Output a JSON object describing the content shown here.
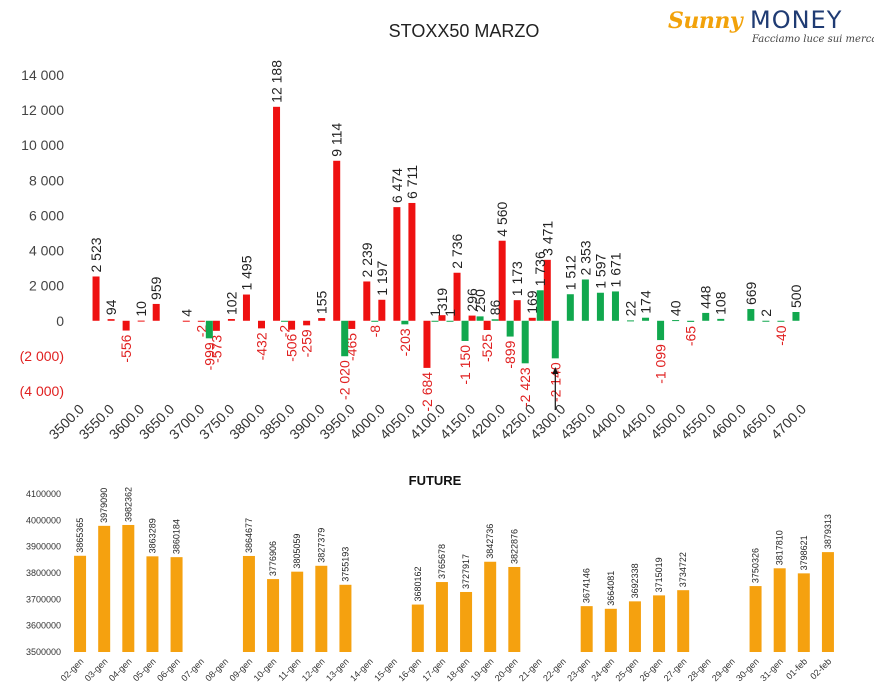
{
  "logo": {
    "brand1": "Sunny",
    "brand2": "MONEY",
    "tagline": "Facciamo luce sui mercati"
  },
  "colors": {
    "call": "#ee1111",
    "put": "#11a84e",
    "future": "#f5a10f",
    "neg_label": "#e02020",
    "axis_text": "#444444"
  },
  "chart_data": [
    {
      "type": "bar",
      "title": "STOXX50 MARZO",
      "ylim": [
        -4000,
        14000
      ],
      "yticks": [
        {
          "v": 14000,
          "label": "14 000"
        },
        {
          "v": 12000,
          "label": "12 000"
        },
        {
          "v": 10000,
          "label": "10 000"
        },
        {
          "v": 8000,
          "label": "8 000"
        },
        {
          "v": 6000,
          "label": "6 000"
        },
        {
          "v": 4000,
          "label": "4 000"
        },
        {
          "v": 2000,
          "label": "2 000"
        },
        {
          "v": 0,
          "label": "0"
        },
        {
          "v": -2000,
          "label": "(2 000)"
        },
        {
          "v": -4000,
          "label": "(4 000)"
        }
      ],
      "xlim": [
        3500,
        4700
      ],
      "xticks": [
        "3500.0",
        "3550.0",
        "3600.0",
        "3650.0",
        "3700.0",
        "3750.0",
        "3800.0",
        "3850.0",
        "3900.0",
        "3950.0",
        "4000.0",
        "4050.0",
        "4100.0",
        "4150.0",
        "4200.0",
        "4250.0",
        "4300.0",
        "4350.0",
        "4400.0",
        "4450.0",
        "4500.0",
        "4550.0",
        "4600.0",
        "4650.0",
        "4700.0"
      ],
      "current_price": 4275,
      "series": [
        {
          "color": "#ee1111",
          "points": [
            {
              "x": 3525,
              "y": 2523,
              "label": "2 523"
            },
            {
              "x": 3550,
              "y": 94,
              "label": "94"
            },
            {
              "x": 3575,
              "y": -556,
              "label": "-556"
            },
            {
              "x": 3600,
              "y": 10,
              "label": "10"
            },
            {
              "x": 3625,
              "y": 959,
              "label": "959"
            },
            {
              "x": 3675,
              "y": 4,
              "label": "4"
            },
            {
              "x": 3700,
              "y": -2,
              "label": "-2"
            },
            {
              "x": 3725,
              "y": -573,
              "label": "-573"
            },
            {
              "x": 3750,
              "y": 102,
              "label": "102"
            },
            {
              "x": 3775,
              "y": 1495,
              "label": "1 495"
            },
            {
              "x": 3800,
              "y": -432,
              "label": "-432"
            },
            {
              "x": 3825,
              "y": 12188,
              "label": "12 188"
            },
            {
              "x": 3850,
              "y": -506,
              "label": "-506"
            },
            {
              "x": 3875,
              "y": -259,
              "label": "-259"
            },
            {
              "x": 3900,
              "y": 155,
              "label": "155"
            },
            {
              "x": 3925,
              "y": 9114,
              "label": "9 114"
            },
            {
              "x": 3950,
              "y": -465,
              "label": "-465"
            },
            {
              "x": 3975,
              "y": 2239,
              "label": "2 239"
            },
            {
              "x": 4000,
              "y": 1197,
              "label": "1 197"
            },
            {
              "x": 4025,
              "y": 6474,
              "label": "6 474"
            },
            {
              "x": 4050,
              "y": 6711,
              "label": "6 711"
            },
            {
              "x": 4075,
              "y": -2684,
              "label": "-2 684"
            },
            {
              "x": 4100,
              "y": 319,
              "label": "319"
            },
            {
              "x": 4125,
              "y": 2736,
              "label": "2 736"
            },
            {
              "x": 4150,
              "y": 296,
              "label": "296"
            },
            {
              "x": 4175,
              "y": -525,
              "label": "-525"
            },
            {
              "x": 4200,
              "y": 4560,
              "label": "4 560"
            },
            {
              "x": 4225,
              "y": 1173,
              "label": "1 173"
            },
            {
              "x": 4250,
              "y": 169,
              "label": "169"
            },
            {
              "x": 4275,
              "y": 3471,
              "label": "3 471"
            }
          ]
        },
        {
          "color": "#11a84e",
          "points": [
            {
              "x": 3700,
              "y": -999,
              "label": "-999"
            },
            {
              "x": 3825,
              "y": -2,
              "label": "-2"
            },
            {
              "x": 3925,
              "y": -2020,
              "label": "-2 020"
            },
            {
              "x": 3975,
              "y": -8,
              "label": "-8"
            },
            {
              "x": 4025,
              "y": -203,
              "label": "-203"
            },
            {
              "x": 4075,
              "y": 1,
              "label": "1"
            },
            {
              "x": 4100,
              "y": 1,
              "label": "1"
            },
            {
              "x": 4125,
              "y": -1150,
              "label": "-1 150"
            },
            {
              "x": 4150,
              "y": 250,
              "label": "250"
            },
            {
              "x": 4175,
              "y": 86,
              "label": "86"
            },
            {
              "x": 4200,
              "y": -899,
              "label": "-899"
            },
            {
              "x": 4225,
              "y": -2423,
              "label": "-2 423"
            },
            {
              "x": 4250,
              "y": 1736,
              "label": "1 736"
            },
            {
              "x": 4275,
              "y": -2140,
              "label": "-2 140"
            },
            {
              "x": 4300,
              "y": 1512,
              "label": "1 512"
            },
            {
              "x": 4325,
              "y": 2353,
              "label": "2 353"
            },
            {
              "x": 4350,
              "y": 1597,
              "label": "1 597"
            },
            {
              "x": 4375,
              "y": 1671,
              "label": "1 671"
            },
            {
              "x": 4400,
              "y": 22,
              "label": "22"
            },
            {
              "x": 4425,
              "y": 174,
              "label": "174"
            },
            {
              "x": 4450,
              "y": -1099,
              "label": "-1 099"
            },
            {
              "x": 4475,
              "y": 40,
              "label": "40"
            },
            {
              "x": 4500,
              "y": -65,
              "label": "-65"
            },
            {
              "x": 4525,
              "y": 448,
              "label": "448"
            },
            {
              "x": 4550,
              "y": 108,
              "label": "108"
            },
            {
              "x": 4600,
              "y": 669,
              "label": "669"
            },
            {
              "x": 4625,
              "y": 2,
              "label": "2"
            },
            {
              "x": 4650,
              "y": -40,
              "label": "-40"
            },
            {
              "x": 4675,
              "y": 500,
              "label": "500"
            }
          ]
        }
      ]
    },
    {
      "type": "bar",
      "title": "FUTURE",
      "ylim": [
        3500000,
        4100000
      ],
      "yticks": [
        "3500000",
        "3600000",
        "3700000",
        "3800000",
        "3900000",
        "4000000",
        "4100000"
      ],
      "categories": [
        "02-gen",
        "03-gen",
        "04-gen",
        "05-gen",
        "06-gen",
        "07-gen",
        "08-gen",
        "09-gen",
        "10-gen",
        "11-gen",
        "12-gen",
        "13-gen",
        "14-gen",
        "15-gen",
        "16-gen",
        "17-gen",
        "18-gen",
        "19-gen",
        "20-gen",
        "21-gen",
        "22-gen",
        "23-gen",
        "24-gen",
        "25-gen",
        "26-gen",
        "27-gen",
        "28-gen",
        "29-gen",
        "30-gen",
        "31-gen",
        "01-feb",
        "02-feb"
      ],
      "values": [
        3865365,
        3979090,
        3982362,
        3863289,
        3860184,
        null,
        null,
        3864677,
        3776906,
        3805059,
        3827379,
        3755193,
        null,
        null,
        3680162,
        3765678,
        3727917,
        3842736,
        3822876,
        null,
        null,
        3674146,
        3664081,
        3692338,
        3715019,
        3734722,
        null,
        null,
        3750326,
        3817810,
        3798621,
        3879313
      ]
    }
  ]
}
